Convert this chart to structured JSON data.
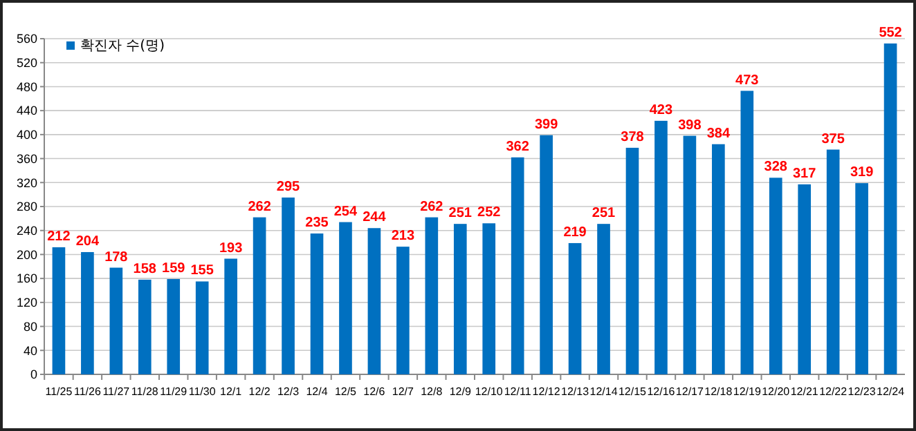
{
  "chart_data": {
    "type": "bar",
    "categories": [
      "11/25",
      "11/26",
      "11/27",
      "11/28",
      "11/29",
      "11/30",
      "12/1",
      "12/2",
      "12/3",
      "12/4",
      "12/5",
      "12/6",
      "12/7",
      "12/8",
      "12/9",
      "12/10",
      "12/11",
      "12/12",
      "12/13",
      "12/14",
      "12/15",
      "12/16",
      "12/17",
      "12/18",
      "12/19",
      "12/20",
      "12/21",
      "12/22",
      "12/23",
      "12/24"
    ],
    "series": [
      {
        "name": "확진자 수(명)",
        "color": "#0070c0",
        "values": [
          212,
          204,
          178,
          158,
          159,
          155,
          193,
          262,
          295,
          235,
          254,
          244,
          213,
          262,
          251,
          252,
          362,
          399,
          219,
          251,
          378,
          423,
          398,
          384,
          473,
          328,
          317,
          375,
          319,
          552
        ]
      }
    ],
    "ylim": [
      0,
      560
    ],
    "yticks": [
      0,
      40,
      80,
      120,
      160,
      200,
      240,
      280,
      320,
      360,
      400,
      440,
      480,
      520,
      560
    ],
    "grid": "y",
    "legend": "top left",
    "data_labels": true
  }
}
